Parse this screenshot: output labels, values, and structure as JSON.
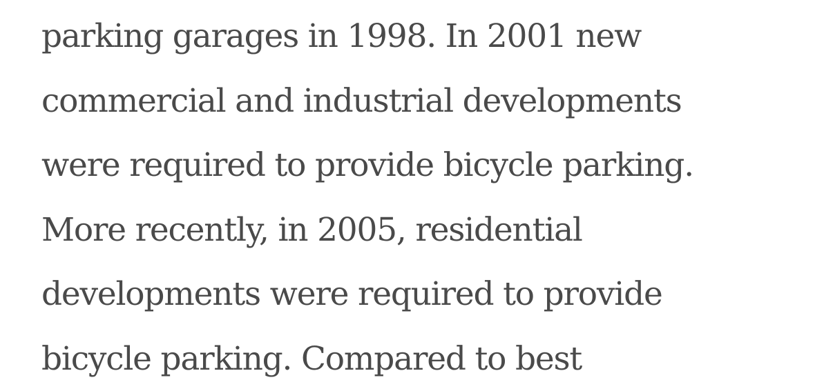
{
  "article": {
    "lines": [
      "parking garages in 1998. In 2001 new",
      "commercial and industrial developments",
      "were required to provide bicycle parking.",
      "More recently, in 2005, residential",
      "developments were required to provide",
      "bicycle parking. Compared to best"
    ],
    "text_color": "#4a4a4a",
    "background_color": "#ffffff"
  }
}
